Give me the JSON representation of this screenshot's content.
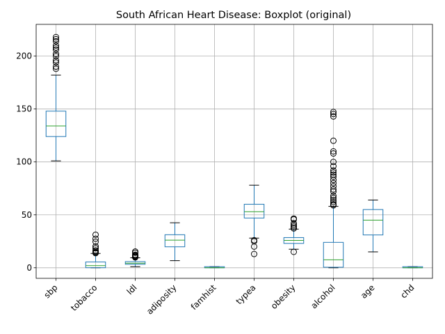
{
  "chart_data": {
    "type": "boxplot",
    "title": "South African Heart Disease: Boxplot (original)",
    "xlabel": "",
    "ylabel": "",
    "ylim": [
      -10,
      230
    ],
    "yticks": [
      0,
      50,
      100,
      150,
      200
    ],
    "grid": true,
    "colors": {
      "box": "#1f77b4",
      "median": "#2ca02c",
      "whisker": "#000000",
      "flier": "#000000"
    },
    "categories": [
      "sbp",
      "tobacco",
      "ldl",
      "adiposity",
      "famhist",
      "typea",
      "obesity",
      "alcohol",
      "age",
      "chd"
    ],
    "boxes": [
      {
        "name": "sbp",
        "whislo": 101,
        "q1": 124,
        "med": 134,
        "q3": 148,
        "whishi": 182,
        "fliers": [
          218,
          216,
          214,
          210,
          208,
          206,
          202,
          200,
          196,
          194,
          190,
          188
        ]
      },
      {
        "name": "tobacco",
        "whislo": 0,
        "q1": 0.05,
        "med": 2,
        "q3": 5.5,
        "whishi": 13.5,
        "fliers": [
          31.2,
          27.4,
          24.6,
          20.2,
          18.4,
          16.4,
          15.2,
          14.4,
          13.8
        ]
      },
      {
        "name": "ldl",
        "whislo": 1,
        "q1": 3.3,
        "med": 4.3,
        "q3": 5.8,
        "whishi": 9.4,
        "fliers": [
          15.3,
          14.2,
          12.3,
          11.6,
          11.3,
          10.6,
          10.5,
          10.1,
          9.8
        ]
      },
      {
        "name": "adiposity",
        "whislo": 6.7,
        "q1": 19.8,
        "med": 26.1,
        "q3": 31.2,
        "whishi": 42.5,
        "fliers": []
      },
      {
        "name": "famhist",
        "whislo": 0,
        "q1": 0,
        "med": 0,
        "q3": 1,
        "whishi": 1,
        "fliers": []
      },
      {
        "name": "typea",
        "whislo": 28,
        "q1": 47,
        "med": 53,
        "q3": 60,
        "whishi": 78,
        "fliers": [
          26,
          25,
          20,
          13
        ]
      },
      {
        "name": "obesity",
        "whislo": 17.5,
        "q1": 23,
        "med": 25.8,
        "q3": 28.5,
        "whishi": 36.5,
        "fliers": [
          46.5,
          45.7,
          42,
          40.3,
          38.9,
          37.4,
          37.2,
          15
        ]
      },
      {
        "name": "alcohol",
        "whislo": 0,
        "q1": 0.5,
        "med": 7.5,
        "q3": 24,
        "whishi": 58,
        "fliers": [
          147.2,
          145.3,
          143,
          120,
          110,
          108,
          100,
          96,
          92,
          90,
          88,
          86,
          83,
          80,
          77,
          74,
          72,
          68,
          66,
          64,
          62,
          60,
          59
        ]
      },
      {
        "name": "age",
        "whislo": 15,
        "q1": 31,
        "med": 45,
        "q3": 55,
        "whishi": 64,
        "fliers": []
      },
      {
        "name": "chd",
        "whislo": 0,
        "q1": 0,
        "med": 0,
        "q3": 1,
        "whishi": 1,
        "fliers": []
      }
    ]
  }
}
